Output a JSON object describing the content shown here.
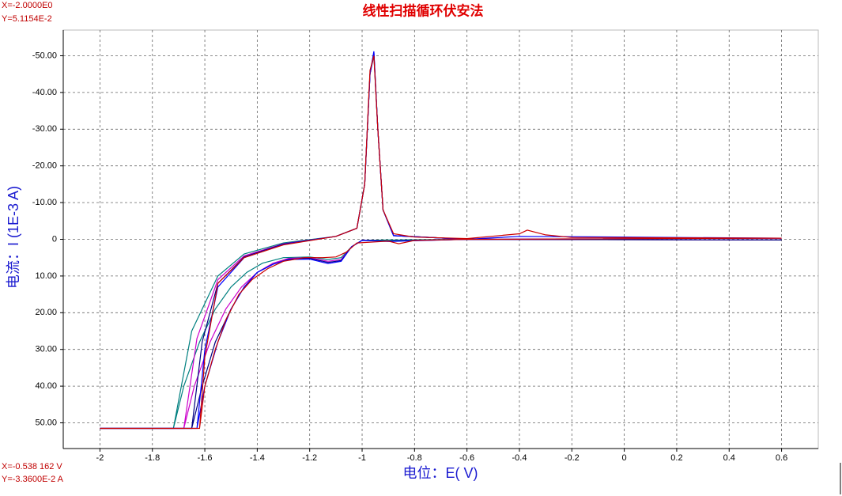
{
  "chart_data": {
    "type": "line",
    "title": "线性扫描循环伏安法",
    "cursor_top": [
      "X=-2.0000E0",
      "Y=5.1154E-2"
    ],
    "cursor_bottom": [
      "X=-0.538 162 V",
      "Y=-3.3600E-2 A"
    ],
    "x_label": "电位：E( V)",
    "y_label": "电流：I (1E-3 A)",
    "xlim": [
      -2.14,
      0.74
    ],
    "ylim": [
      57,
      -57
    ],
    "xticks": [
      -2,
      -1.8,
      -1.6,
      -1.4,
      -1.2,
      -1,
      -0.8,
      -0.6,
      -0.4,
      -0.2,
      0,
      0.2,
      0.4,
      0.6
    ],
    "yticks": [
      {
        "value": -50,
        "label": "-50.00"
      },
      {
        "value": -40,
        "label": "-40.00"
      },
      {
        "value": -30,
        "label": "-30.00"
      },
      {
        "value": -20,
        "label": "-20.00"
      },
      {
        "value": -10,
        "label": "-10.00"
      },
      0,
      {
        "value": 10,
        "label": "10.00"
      },
      {
        "value": 20,
        "label": "20.00"
      },
      {
        "value": 30,
        "label": "30.00"
      },
      {
        "value": 40,
        "label": "40.00"
      },
      {
        "value": 50,
        "label": "50.00"
      }
    ],
    "grid": true,
    "series": [
      {
        "color": "#008080",
        "x": [
          -2,
          -1.72,
          -1.68,
          -1.62,
          -1.56,
          -1.5,
          -1.44,
          -1.38,
          -1.3,
          -1.2,
          -1.13,
          -1.08,
          -1.04,
          -1,
          -0.9,
          -0.6,
          0.6,
          -0.6,
          -0.88,
          -0.92,
          -0.94,
          -0.955,
          -0.97,
          -0.99,
          -1.02,
          -1.1,
          -1.3,
          -1.45,
          -1.55,
          -1.65,
          -1.72
        ],
        "values": [
          51.5,
          51.5,
          40,
          28,
          19,
          13,
          9,
          6.5,
          5,
          4.8,
          5.5,
          5,
          2,
          0.3,
          0.2,
          0,
          0.2,
          0,
          -1,
          -8,
          -30,
          -50,
          -45,
          -15,
          -3,
          -0.8,
          1,
          4,
          10,
          25,
          51.5
        ]
      },
      {
        "color": "#cc00cc",
        "x": [
          -2,
          -1.68,
          -1.64,
          -1.58,
          -1.52,
          -1.46,
          -1.4,
          -1.34,
          -1.28,
          -1.2,
          -1.13,
          -1.08,
          -1.04,
          -1,
          -0.9,
          -0.6,
          0.6,
          -0.6,
          -0.88,
          -0.92,
          -0.94,
          -0.955,
          -0.97,
          -0.99,
          -1.02,
          -1.1,
          -1.3,
          -1.45,
          -1.55,
          -1.63,
          -1.68
        ],
        "values": [
          51.5,
          51.5,
          40,
          28,
          19,
          13,
          9,
          6.5,
          5.2,
          5,
          6,
          5.5,
          2,
          0.3,
          0.5,
          0,
          0.2,
          0,
          -1,
          -8,
          -30,
          -50.5,
          -45,
          -15,
          -3,
          -0.8,
          1.2,
          4.5,
          11,
          27,
          51.5
        ]
      },
      {
        "color": "#000080",
        "x": [
          -2,
          -1.65,
          -1.61,
          -1.56,
          -1.5,
          -1.45,
          -1.4,
          -1.34,
          -1.28,
          -1.2,
          -1.13,
          -1.08,
          -1.04,
          -1,
          -0.9,
          -0.6,
          0.6,
          -0.6,
          -0.88,
          -0.92,
          -0.94,
          -0.955,
          -0.97,
          -0.99,
          -1.02,
          -1.1,
          -1.3,
          -1.45,
          -1.55,
          -1.61,
          -1.65
        ],
        "values": [
          51.5,
          51.5,
          40,
          28,
          19,
          13,
          9,
          6.8,
          5.4,
          5.2,
          6.3,
          5.8,
          2,
          0.3,
          0.5,
          0,
          0.2,
          0,
          -1,
          -8,
          -30,
          -51,
          -45,
          -15,
          -3,
          -0.8,
          1.3,
          4.8,
          12,
          28,
          51.5
        ]
      },
      {
        "color": "#0000ff",
        "x": [
          -2,
          -1.63,
          -1.6,
          -1.55,
          -1.5,
          -1.45,
          -1.4,
          -1.34,
          -1.28,
          -1.2,
          -1.13,
          -1.08,
          -1.04,
          -1,
          -0.9,
          -0.6,
          -0.4,
          0.6,
          -0.6,
          -0.88,
          -0.92,
          -0.94,
          -0.955,
          -0.97,
          -0.99,
          -1.02,
          -1.1,
          -1.3,
          -1.45,
          -1.55,
          -1.6,
          -1.63
        ],
        "values": [
          51.5,
          51.5,
          40,
          28,
          19,
          13,
          9,
          6.8,
          5.5,
          5.4,
          6.6,
          6,
          2,
          0.3,
          0.6,
          0,
          -0.8,
          -0.3,
          0,
          -1,
          -8,
          -30,
          -51.2,
          -45,
          -15,
          -3,
          -0.8,
          1.4,
          5,
          13,
          30,
          51.5
        ]
      },
      {
        "color": "#cc0000",
        "x": [
          -2,
          -1.62,
          -1.6,
          -1.56,
          -1.52,
          -1.47,
          -1.42,
          -1.36,
          -1.3,
          -1.22,
          -1.15,
          -1.1,
          -1.06,
          -1.02,
          -0.9,
          -0.86,
          -0.8,
          -0.6,
          0.6,
          -0.2,
          -0.3,
          -0.37,
          -0.4,
          -0.6,
          -0.8,
          -0.88,
          -0.92,
          -0.94,
          -0.955,
          -0.97,
          -0.99,
          -1.02,
          -1.1,
          -1.3,
          -1.45,
          -1.55,
          -1.6,
          -1.62
        ],
        "values": [
          51.5,
          51.5,
          40,
          30,
          22,
          15,
          11,
          8,
          6,
          5,
          5,
          4.8,
          3.5,
          1,
          0.5,
          1.2,
          0.3,
          0,
          -0.3,
          -0.5,
          -1.2,
          -2.5,
          -1.5,
          -0.2,
          -0.6,
          -1.5,
          -8,
          -30,
          -50,
          -46,
          -15,
          -3,
          -0.8,
          1.5,
          5,
          12,
          32,
          51.5
        ]
      }
    ]
  }
}
